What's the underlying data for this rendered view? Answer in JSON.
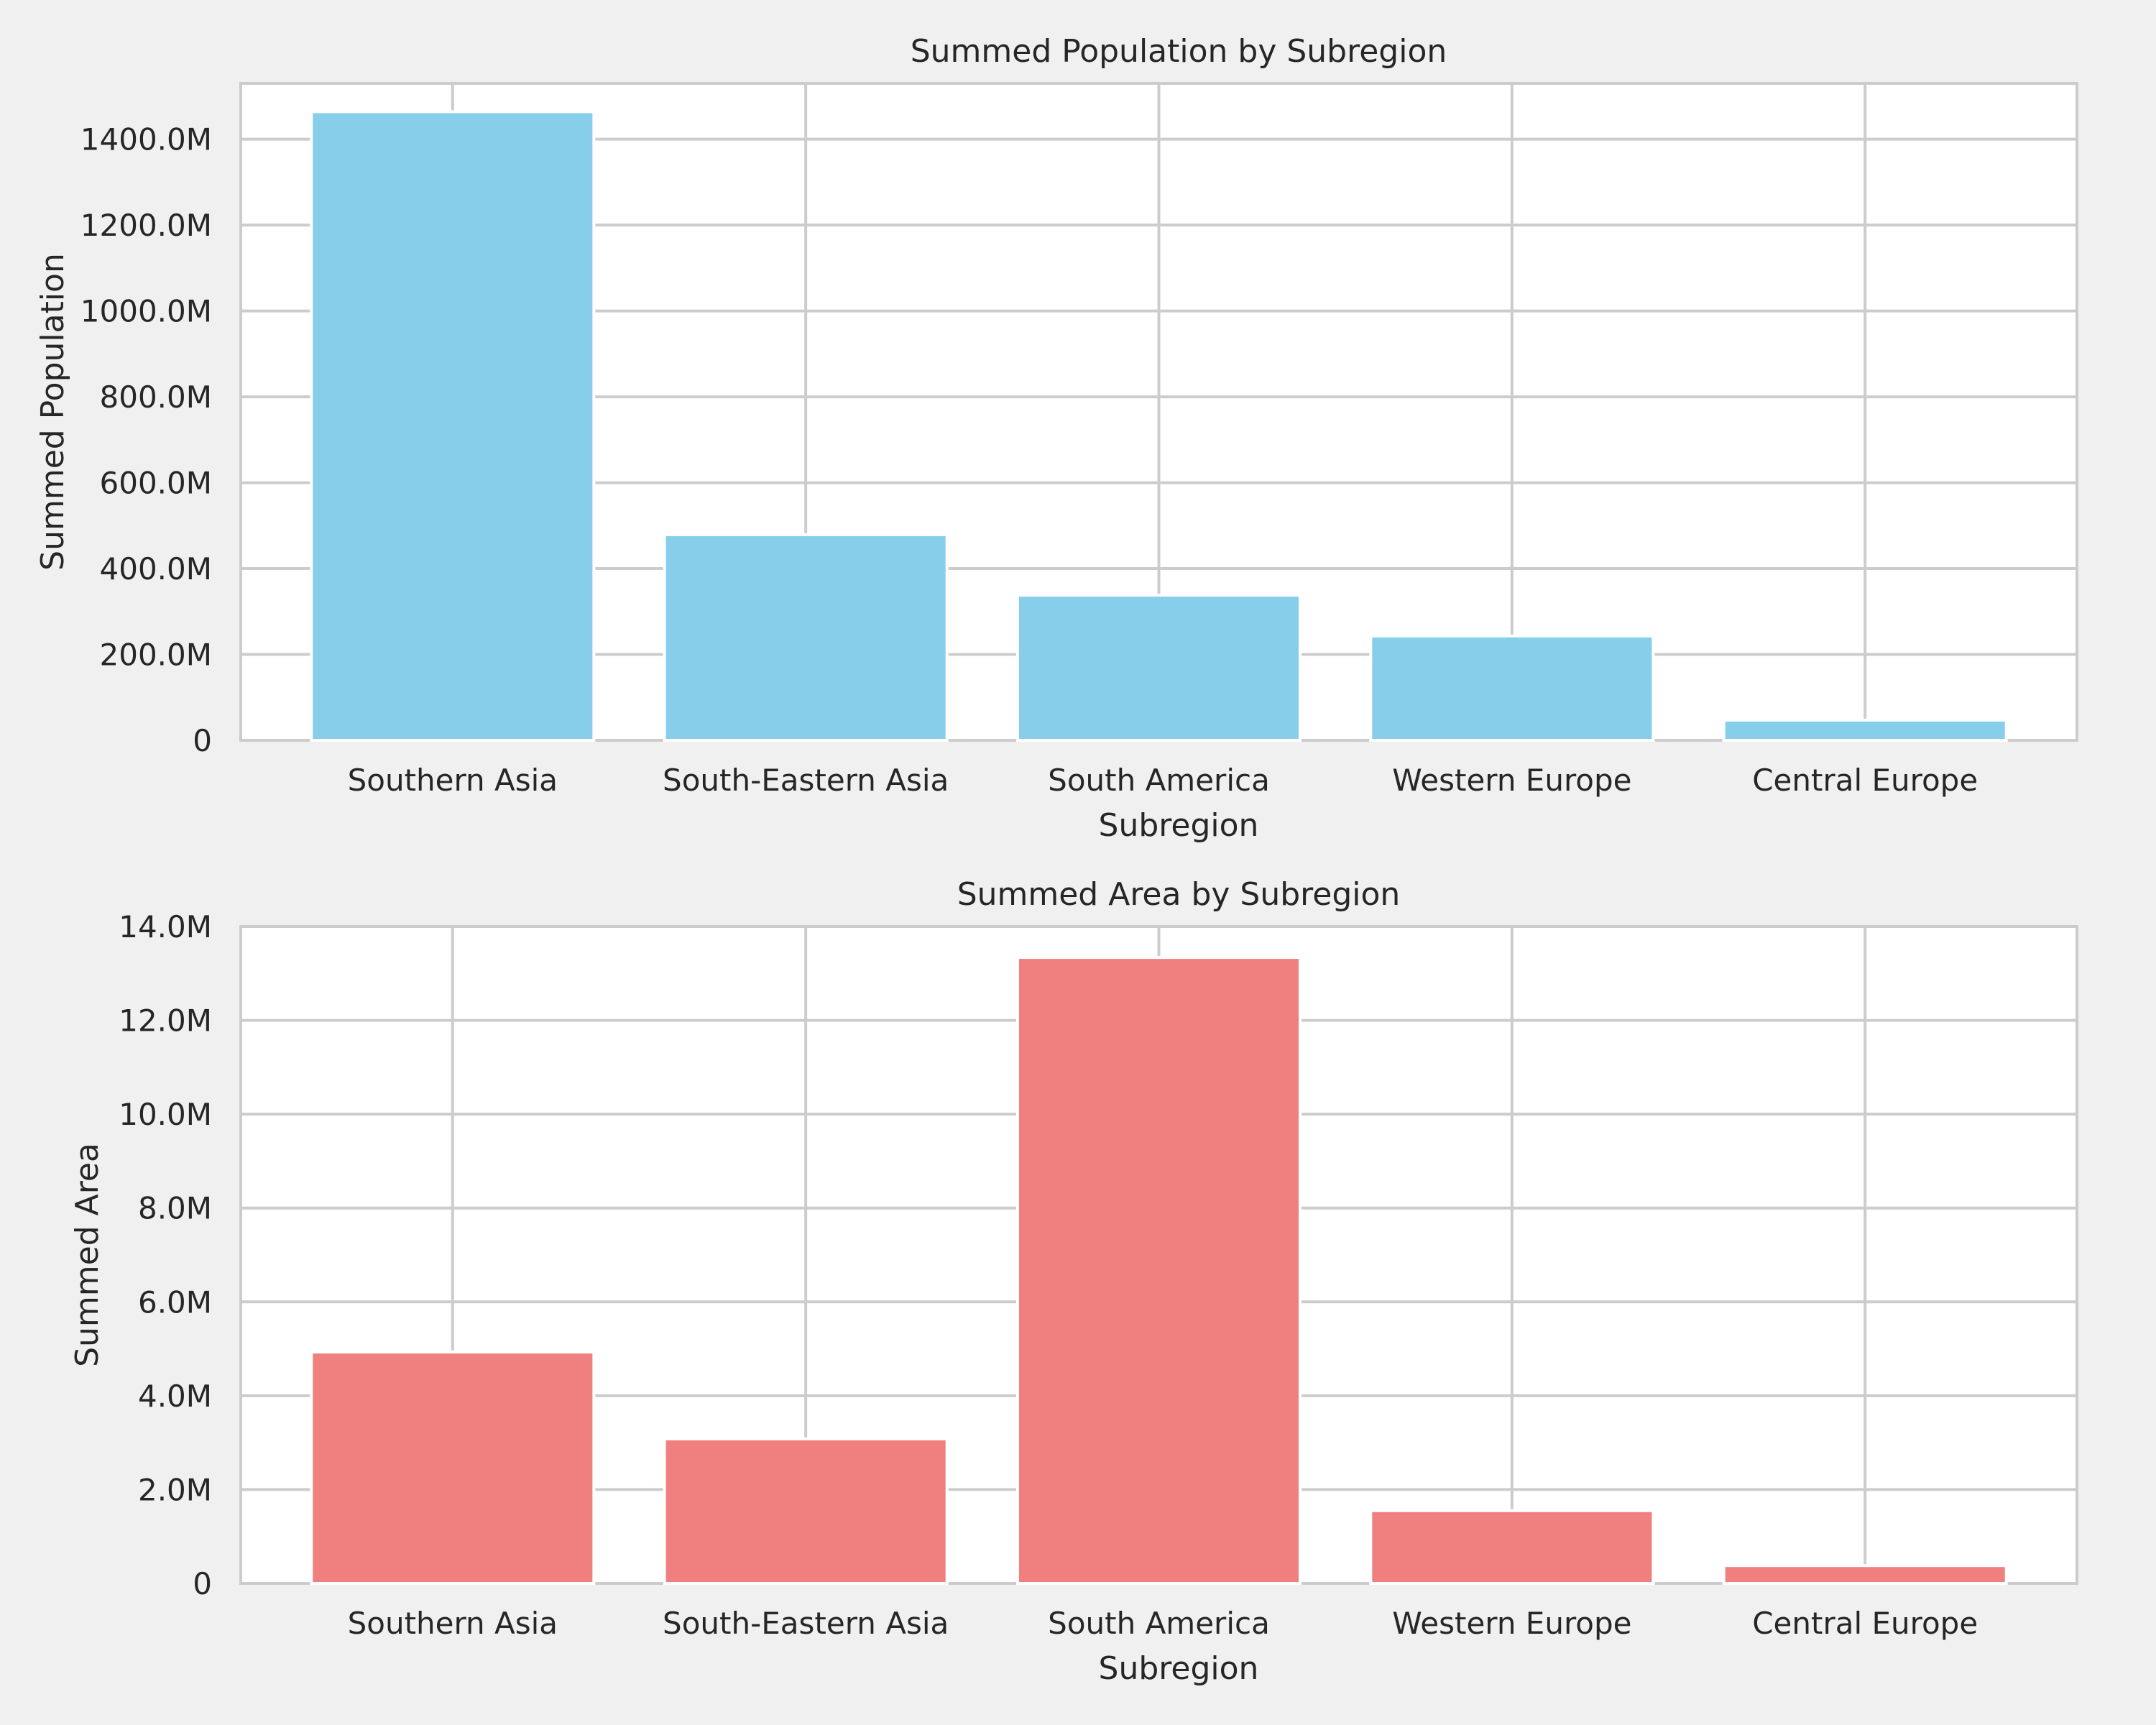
{
  "chart_data": [
    {
      "type": "bar",
      "title": "Summed Population by Subregion",
      "xlabel": "Subregion",
      "ylabel": "Summed Population",
      "categories": [
        "Southern Asia",
        "South-Eastern Asia",
        "South America",
        "Western Europe",
        "Central Europe"
      ],
      "values": [
        1464,
        479,
        338,
        243,
        47
      ],
      "value_unit": "millions",
      "ylim": [
        0,
        1530
      ],
      "yticks": [
        0,
        200,
        400,
        600,
        800,
        1000,
        1200,
        1400
      ],
      "ytick_labels": [
        "0",
        "200.0M",
        "400.0M",
        "600.0M",
        "800.0M",
        "1000.0M",
        "1200.0M",
        "1400.0M"
      ],
      "bar_color": "#87ceeb",
      "grid": true
    },
    {
      "type": "bar",
      "title": "Summed Area by Subregion",
      "xlabel": "Subregion",
      "ylabel": "Summed Area",
      "categories": [
        "Southern Asia",
        "South-Eastern Asia",
        "South America",
        "Western Europe",
        "Central Europe"
      ],
      "values": [
        4.93,
        3.08,
        13.34,
        1.55,
        0.38
      ],
      "value_unit": "millions",
      "ylim": [
        0,
        14.0
      ],
      "yticks": [
        0,
        2,
        4,
        6,
        8,
        10,
        12,
        14
      ],
      "ytick_labels": [
        "0",
        "2.0M",
        "4.0M",
        "6.0M",
        "8.0M",
        "10.0M",
        "12.0M",
        "14.0M"
      ],
      "bar_color": "#f08080",
      "grid": true
    }
  ]
}
